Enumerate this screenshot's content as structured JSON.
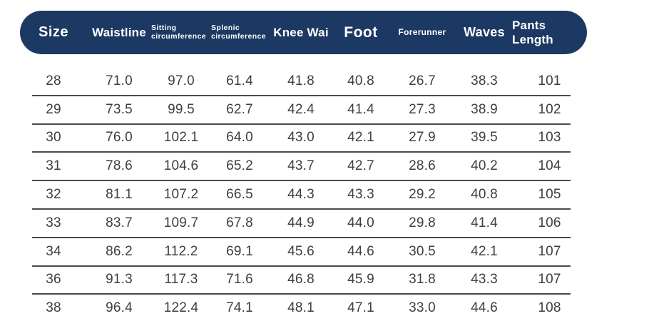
{
  "size_chart": {
    "columns": [
      {
        "label": "Size"
      },
      {
        "label": "Waistline"
      },
      {
        "label": "Sitting circumference"
      },
      {
        "label": "Splenic circumference"
      },
      {
        "label": "Knee Wai"
      },
      {
        "label": "Foot"
      },
      {
        "label": "Forerunner"
      },
      {
        "label": "Waves"
      },
      {
        "label": "Pants Length"
      }
    ],
    "rows": [
      [
        "28",
        "71.0",
        "97.0",
        "61.4",
        "41.8",
        "40.8",
        "26.7",
        "38.3",
        "101"
      ],
      [
        "29",
        "73.5",
        "99.5",
        "62.7",
        "42.4",
        "41.4",
        "27.3",
        "38.9",
        "102"
      ],
      [
        "30",
        "76.0",
        "102.1",
        "64.0",
        "43.0",
        "42.1",
        "27.9",
        "39.5",
        "103"
      ],
      [
        "31",
        "78.6",
        "104.6",
        "65.2",
        "43.7",
        "42.7",
        "28.6",
        "40.2",
        "104"
      ],
      [
        "32",
        "81.1",
        "107.2",
        "66.5",
        "44.3",
        "43.3",
        "29.2",
        "40.8",
        "105"
      ],
      [
        "33",
        "83.7",
        "109.7",
        "67.8",
        "44.9",
        "44.0",
        "29.8",
        "41.4",
        "106"
      ],
      [
        "34",
        "86.2",
        "112.2",
        "69.1",
        "45.6",
        "44.6",
        "30.5",
        "42.1",
        "107"
      ],
      [
        "36",
        "91.3",
        "117.3",
        "71.6",
        "46.8",
        "45.9",
        "31.8",
        "43.3",
        "107"
      ],
      [
        "38",
        "96.4",
        "122.4",
        "74.1",
        "48.1",
        "47.1",
        "33.0",
        "44.6",
        "108"
      ]
    ]
  },
  "colors": {
    "header_bg": "#1c3963",
    "header_text": "#ffffff",
    "body_text": "#3f3f3f",
    "row_line": "#4a4a4a",
    "page_bg": "#ffffff"
  }
}
